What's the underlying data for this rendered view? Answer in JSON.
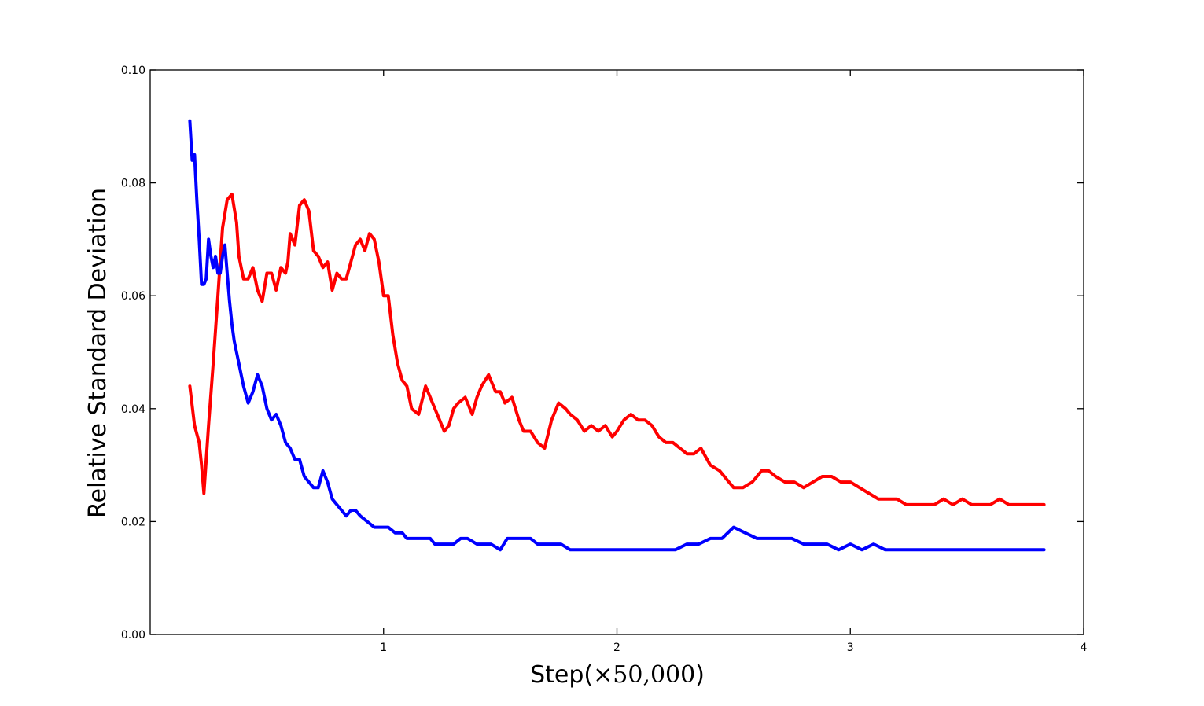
{
  "chart_data": {
    "type": "line",
    "title": "",
    "xlabel": "Step(×50,000)",
    "xlabel_parts": {
      "prefix": "Step(",
      "math": "×50,000",
      "suffix": ")"
    },
    "ylabel": "Relative Standard Deviation",
    "xlim": [
      0,
      4
    ],
    "ylim": [
      0,
      0.1
    ],
    "xticks": [
      1,
      2,
      3,
      4
    ],
    "xtick_labels": [
      "1",
      "2",
      "3",
      "4"
    ],
    "yticks": [
      0.0,
      0.02,
      0.04,
      0.06,
      0.08,
      0.1
    ],
    "ytick_labels": [
      "0.00",
      "0.02",
      "0.04",
      "0.06",
      "0.08",
      "0.10"
    ],
    "grid": false,
    "legend": "none",
    "series": [
      {
        "color": "#ff0000",
        "x": [
          0.17,
          0.19,
          0.21,
          0.22,
          0.23,
          0.25,
          0.27,
          0.29,
          0.3,
          0.31,
          0.33,
          0.35,
          0.37,
          0.38,
          0.4,
          0.42,
          0.44,
          0.46,
          0.48,
          0.5,
          0.52,
          0.54,
          0.56,
          0.58,
          0.59,
          0.6,
          0.62,
          0.64,
          0.66,
          0.68,
          0.7,
          0.72,
          0.74,
          0.76,
          0.78,
          0.8,
          0.82,
          0.84,
          0.86,
          0.88,
          0.9,
          0.92,
          0.94,
          0.96,
          0.98,
          1.0,
          1.02,
          1.04,
          1.06,
          1.08,
          1.1,
          1.12,
          1.15,
          1.18,
          1.2,
          1.22,
          1.24,
          1.26,
          1.28,
          1.3,
          1.32,
          1.35,
          1.38,
          1.4,
          1.42,
          1.45,
          1.48,
          1.5,
          1.52,
          1.55,
          1.58,
          1.6,
          1.63,
          1.66,
          1.69,
          1.72,
          1.75,
          1.78,
          1.8,
          1.83,
          1.86,
          1.89,
          1.92,
          1.95,
          1.98,
          2.0,
          2.03,
          2.06,
          2.09,
          2.12,
          2.15,
          2.18,
          2.21,
          2.24,
          2.27,
          2.3,
          2.33,
          2.36,
          2.4,
          2.44,
          2.48,
          2.5,
          2.54,
          2.58,
          2.62,
          2.65,
          2.68,
          2.72,
          2.76,
          2.8,
          2.84,
          2.88,
          2.92,
          2.96,
          3.0,
          3.04,
          3.08,
          3.12,
          3.16,
          3.2,
          3.24,
          3.28,
          3.32,
          3.36,
          3.4,
          3.44,
          3.48,
          3.52,
          3.56,
          3.6,
          3.64,
          3.68,
          3.72,
          3.76,
          3.8,
          3.83
        ],
        "y": [
          0.044,
          0.037,
          0.034,
          0.03,
          0.025,
          0.037,
          0.048,
          0.06,
          0.066,
          0.072,
          0.077,
          0.078,
          0.073,
          0.067,
          0.063,
          0.063,
          0.065,
          0.061,
          0.059,
          0.064,
          0.064,
          0.061,
          0.065,
          0.064,
          0.066,
          0.071,
          0.069,
          0.076,
          0.077,
          0.075,
          0.068,
          0.067,
          0.065,
          0.066,
          0.061,
          0.064,
          0.063,
          0.063,
          0.066,
          0.069,
          0.07,
          0.068,
          0.071,
          0.07,
          0.066,
          0.06,
          0.06,
          0.053,
          0.048,
          0.045,
          0.044,
          0.04,
          0.039,
          0.044,
          0.042,
          0.04,
          0.038,
          0.036,
          0.037,
          0.04,
          0.041,
          0.042,
          0.039,
          0.042,
          0.044,
          0.046,
          0.043,
          0.043,
          0.041,
          0.042,
          0.038,
          0.036,
          0.036,
          0.034,
          0.033,
          0.038,
          0.041,
          0.04,
          0.039,
          0.038,
          0.036,
          0.037,
          0.036,
          0.037,
          0.035,
          0.036,
          0.038,
          0.039,
          0.038,
          0.038,
          0.037,
          0.035,
          0.034,
          0.034,
          0.033,
          0.032,
          0.032,
          0.033,
          0.03,
          0.029,
          0.027,
          0.026,
          0.026,
          0.027,
          0.029,
          0.029,
          0.028,
          0.027,
          0.027,
          0.026,
          0.027,
          0.028,
          0.028,
          0.027,
          0.027,
          0.026,
          0.025,
          0.024,
          0.024,
          0.024,
          0.023,
          0.023,
          0.023,
          0.023,
          0.024,
          0.023,
          0.024,
          0.023,
          0.023,
          0.023,
          0.024,
          0.023,
          0.023,
          0.023,
          0.023,
          0.023
        ]
      },
      {
        "color": "#0000ff",
        "x": [
          0.17,
          0.18,
          0.19,
          0.2,
          0.21,
          0.22,
          0.23,
          0.24,
          0.25,
          0.26,
          0.27,
          0.28,
          0.29,
          0.3,
          0.31,
          0.32,
          0.33,
          0.34,
          0.35,
          0.36,
          0.37,
          0.38,
          0.39,
          0.4,
          0.42,
          0.44,
          0.46,
          0.48,
          0.5,
          0.52,
          0.54,
          0.56,
          0.58,
          0.6,
          0.62,
          0.64,
          0.66,
          0.68,
          0.7,
          0.72,
          0.74,
          0.76,
          0.78,
          0.8,
          0.82,
          0.84,
          0.86,
          0.88,
          0.9,
          0.93,
          0.96,
          0.99,
          1.02,
          1.05,
          1.08,
          1.1,
          1.12,
          1.15,
          1.18,
          1.2,
          1.22,
          1.25,
          1.28,
          1.3,
          1.33,
          1.36,
          1.4,
          1.43,
          1.46,
          1.5,
          1.53,
          1.56,
          1.6,
          1.63,
          1.66,
          1.7,
          1.73,
          1.76,
          1.8,
          1.84,
          1.88,
          1.92,
          1.96,
          2.0,
          2.05,
          2.1,
          2.15,
          2.2,
          2.25,
          2.3,
          2.35,
          2.4,
          2.45,
          2.5,
          2.55,
          2.6,
          2.65,
          2.7,
          2.75,
          2.8,
          2.85,
          2.9,
          2.95,
          3.0,
          3.05,
          3.1,
          3.15,
          3.2,
          3.25,
          3.3,
          3.35,
          3.4,
          3.45,
          3.5,
          3.55,
          3.6,
          3.65,
          3.7,
          3.75,
          3.8,
          3.83
        ],
        "y": [
          0.091,
          0.084,
          0.085,
          0.077,
          0.07,
          0.062,
          0.062,
          0.063,
          0.07,
          0.067,
          0.065,
          0.067,
          0.064,
          0.064,
          0.067,
          0.069,
          0.064,
          0.059,
          0.055,
          0.052,
          0.05,
          0.048,
          0.046,
          0.044,
          0.041,
          0.043,
          0.046,
          0.044,
          0.04,
          0.038,
          0.039,
          0.037,
          0.034,
          0.033,
          0.031,
          0.031,
          0.028,
          0.027,
          0.026,
          0.026,
          0.029,
          0.027,
          0.024,
          0.023,
          0.022,
          0.021,
          0.022,
          0.022,
          0.021,
          0.02,
          0.019,
          0.019,
          0.019,
          0.018,
          0.018,
          0.017,
          0.017,
          0.017,
          0.017,
          0.017,
          0.016,
          0.016,
          0.016,
          0.016,
          0.017,
          0.017,
          0.016,
          0.016,
          0.016,
          0.015,
          0.017,
          0.017,
          0.017,
          0.017,
          0.016,
          0.016,
          0.016,
          0.016,
          0.015,
          0.015,
          0.015,
          0.015,
          0.015,
          0.015,
          0.015,
          0.015,
          0.015,
          0.015,
          0.015,
          0.016,
          0.016,
          0.017,
          0.017,
          0.019,
          0.018,
          0.017,
          0.017,
          0.017,
          0.017,
          0.016,
          0.016,
          0.016,
          0.015,
          0.016,
          0.015,
          0.016,
          0.015,
          0.015,
          0.015,
          0.015,
          0.015,
          0.015,
          0.015,
          0.015,
          0.015,
          0.015,
          0.015,
          0.015,
          0.015,
          0.015,
          0.015
        ]
      }
    ]
  }
}
